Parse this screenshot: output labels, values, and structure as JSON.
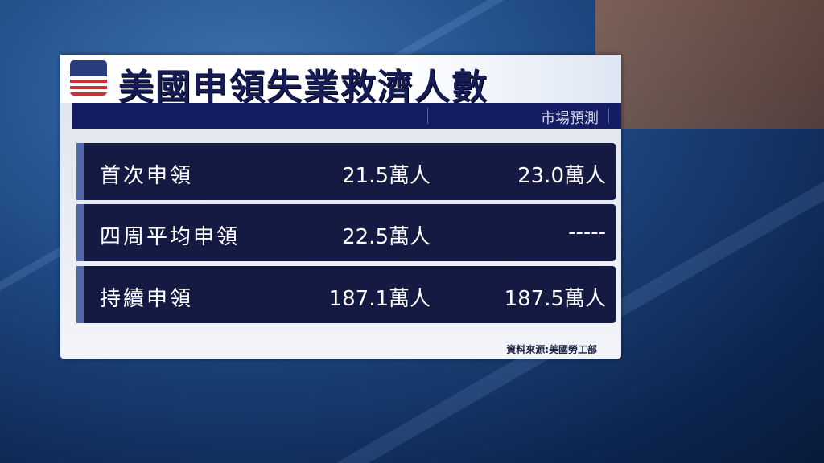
{
  "title": "美國申領失業救濟人數",
  "header": {
    "forecast_label": "市場預測"
  },
  "rows": [
    {
      "label": "首次申領",
      "actual": "21.5萬人",
      "forecast": "23.0萬人"
    },
    {
      "label": "四周平均申領",
      "actual": "22.5萬人",
      "forecast": "-----"
    },
    {
      "label": "持續申領",
      "actual": "187.1萬人",
      "forecast": "187.5萬人"
    }
  ],
  "source": "資料來源:美國勞工部",
  "icons": {
    "flag": "us-flag-icon"
  }
}
